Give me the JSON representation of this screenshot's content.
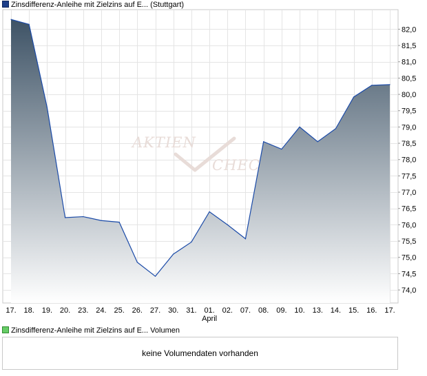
{
  "legend_price": {
    "label": "Zinsdifferenz-Anleihe mit Zielzins auf E...  (Stuttgart)",
    "color": "#1d3f8a"
  },
  "legend_volume": {
    "label": "Zinsdifferenz-Anleihe mit Zielzins auf E...  Volumen",
    "color": "#66cc66"
  },
  "volume_message": "keine Volumendaten vorhanden",
  "watermark": {
    "line1": "AKTIEN",
    "line2": "CHECK"
  },
  "chart_data": {
    "type": "area",
    "x": [
      "17.",
      "18.",
      "19.",
      "20.",
      "23.",
      "24.",
      "25.",
      "26.",
      "27.",
      "30.",
      "31.",
      "01.",
      "02.",
      "07.",
      "08.",
      "09.",
      "10.",
      "13.",
      "14.",
      "15.",
      "16.",
      "17."
    ],
    "x_month_label": {
      "index": 11,
      "text": "April"
    },
    "series": [
      {
        "values": [
          82.3,
          82.15,
          79.6,
          76.22,
          76.25,
          76.13,
          76.08,
          74.85,
          74.42,
          75.1,
          75.47,
          76.4,
          76.0,
          75.57,
          78.55,
          78.32,
          79.0,
          78.55,
          78.95,
          79.92,
          80.28,
          80.3
        ]
      }
    ],
    "ylim": [
      73.6,
      82.6
    ],
    "yticks": [
      74.0,
      74.5,
      75.0,
      75.5,
      76.0,
      76.5,
      77.0,
      77.5,
      78.0,
      78.5,
      79.0,
      79.5,
      80.0,
      80.5,
      81.0,
      81.5,
      82.0
    ],
    "ytick_labels": [
      "74,0",
      "74,5",
      "75,0",
      "75,5",
      "76,0",
      "76,5",
      "77,0",
      "77,5",
      "78,0",
      "78,5",
      "79,0",
      "79,5",
      "80,0",
      "80,5",
      "81,0",
      "81,5",
      "82,0"
    ],
    "grid": true,
    "y_axis_side": "right",
    "line_color": "#1a4aa8",
    "fill_top_color": "#3e5366",
    "fill_bottom_color": "#ffffff"
  }
}
